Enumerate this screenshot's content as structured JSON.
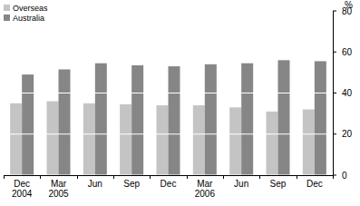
{
  "chart_data": {
    "type": "bar",
    "categories": [
      "Dec 2004",
      "Mar 2005",
      "Jun",
      "Sep",
      "Dec",
      "Mar 2006",
      "Jun",
      "Sep",
      "Dec"
    ],
    "series": [
      {
        "name": "Overseas",
        "color": "#c4c4c4",
        "values": [
          35,
          36,
          35,
          34.5,
          34,
          34,
          33,
          31,
          32
        ]
      },
      {
        "name": "Australia",
        "color": "#868686",
        "values": [
          49,
          51.5,
          54.5,
          53.5,
          53,
          54,
          54.5,
          56,
          55.5
        ]
      }
    ],
    "y_label": "%",
    "ylim": [
      0,
      80
    ],
    "yticks": [
      0,
      20,
      40,
      60,
      80
    ],
    "grid": true,
    "legend": "top-left"
  }
}
